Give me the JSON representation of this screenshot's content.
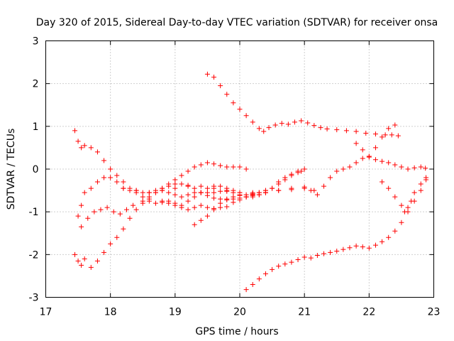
{
  "chart_data": {
    "type": "scatter",
    "title": "Day 320 of 2015, Sidereal Day-to-day VTEC variation (SDTVAR) for receiver onsa",
    "xlabel": "GPS time / hours",
    "ylabel": "SDTVAR / TECUs",
    "xlim": [
      17,
      23
    ],
    "ylim": [
      -3,
      3
    ],
    "xticks": [
      "17",
      "18",
      "19",
      "20",
      "21",
      "22",
      "23"
    ],
    "yticks": [
      "-3",
      "-2",
      "-1",
      "0",
      "1",
      "2",
      "3"
    ],
    "grid": true,
    "marker": "+",
    "color": "#ff0000",
    "series": [
      {
        "points": [
          [
            19.5,
            2.22
          ],
          [
            19.6,
            2.15
          ],
          [
            19.7,
            1.95
          ],
          [
            19.8,
            1.75
          ],
          [
            19.9,
            1.55
          ],
          [
            20.0,
            1.4
          ],
          [
            20.1,
            1.25
          ],
          [
            20.2,
            1.1
          ],
          [
            20.3,
            0.95
          ],
          [
            20.37,
            0.88
          ],
          [
            20.45,
            0.97
          ],
          [
            20.55,
            1.03
          ],
          [
            20.65,
            1.07
          ],
          [
            20.75,
            1.05
          ],
          [
            20.85,
            1.1
          ],
          [
            20.95,
            1.13
          ],
          [
            21.05,
            1.08
          ],
          [
            21.15,
            1.02
          ],
          [
            21.25,
            0.97
          ],
          [
            21.35,
            0.94
          ],
          [
            21.5,
            0.92
          ],
          [
            21.65,
            0.9
          ],
          [
            21.8,
            0.88
          ],
          [
            21.95,
            0.84
          ],
          [
            22.1,
            0.82
          ],
          [
            22.25,
            0.8
          ],
          [
            22.35,
            0.8
          ],
          [
            22.45,
            0.78
          ]
        ]
      },
      {
        "points": [
          [
            20.1,
            -2.82
          ],
          [
            20.2,
            -2.7
          ],
          [
            20.3,
            -2.57
          ],
          [
            20.4,
            -2.45
          ],
          [
            20.5,
            -2.35
          ],
          [
            20.6,
            -2.27
          ],
          [
            20.7,
            -2.22
          ],
          [
            20.8,
            -2.18
          ],
          [
            20.9,
            -2.12
          ],
          [
            21.0,
            -2.06
          ],
          [
            21.1,
            -2.08
          ],
          [
            21.2,
            -2.02
          ],
          [
            21.3,
            -1.98
          ],
          [
            21.4,
            -1.95
          ],
          [
            21.5,
            -1.92
          ],
          [
            21.6,
            -1.88
          ],
          [
            21.7,
            -1.84
          ],
          [
            21.8,
            -1.8
          ],
          [
            21.9,
            -1.82
          ],
          [
            22.0,
            -1.85
          ],
          [
            22.1,
            -1.78
          ],
          [
            22.2,
            -1.7
          ],
          [
            22.3,
            -1.6
          ],
          [
            22.4,
            -1.45
          ],
          [
            22.5,
            -1.25
          ],
          [
            22.6,
            -1.0
          ],
          [
            22.7,
            -0.75
          ],
          [
            22.8,
            -0.5
          ],
          [
            22.88,
            -0.25
          ]
        ]
      },
      {
        "points": [
          [
            22.2,
            -0.3
          ],
          [
            22.3,
            -0.45
          ],
          [
            22.4,
            -0.65
          ],
          [
            22.5,
            -0.85
          ],
          [
            22.55,
            -1.0
          ],
          [
            22.6,
            -0.9
          ],
          [
            22.65,
            -0.75
          ],
          [
            22.7,
            -0.55
          ],
          [
            22.8,
            -0.35
          ],
          [
            22.88,
            -0.2
          ]
        ]
      },
      {
        "points": [
          [
            18.2,
            -0.45
          ],
          [
            18.4,
            -0.5
          ],
          [
            18.6,
            -0.55
          ],
          [
            18.8,
            -0.5
          ],
          [
            19.0,
            -0.45
          ],
          [
            19.2,
            -0.4
          ],
          [
            19.4,
            -0.4
          ],
          [
            19.6,
            -0.45
          ],
          [
            19.8,
            -0.5
          ],
          [
            20.0,
            -0.55
          ],
          [
            20.2,
            -0.58
          ],
          [
            20.4,
            -0.55
          ],
          [
            20.6,
            -0.5
          ],
          [
            20.8,
            -0.48
          ],
          [
            21.0,
            -0.45
          ],
          [
            21.15,
            -0.5
          ],
          [
            21.2,
            -0.6
          ],
          [
            21.3,
            -0.4
          ],
          [
            21.4,
            -0.2
          ],
          [
            21.5,
            -0.05
          ],
          [
            21.6,
            0.0
          ],
          [
            21.7,
            0.05
          ],
          [
            21.8,
            0.15
          ],
          [
            21.9,
            0.25
          ],
          [
            22.0,
            0.28
          ],
          [
            22.1,
            0.22
          ],
          [
            22.2,
            0.18
          ],
          [
            22.3,
            0.15
          ],
          [
            22.4,
            0.1
          ],
          [
            22.5,
            0.05
          ],
          [
            22.6,
            0.0
          ],
          [
            22.7,
            0.03
          ],
          [
            22.8,
            0.05
          ],
          [
            22.87,
            0.02
          ]
        ]
      },
      {
        "points": [
          [
            21.8,
            0.6
          ],
          [
            21.9,
            0.45
          ],
          [
            22.0,
            0.3
          ],
          [
            22.1,
            0.5
          ],
          [
            22.2,
            0.75
          ],
          [
            22.3,
            0.95
          ],
          [
            22.4,
            1.03
          ]
        ]
      },
      {
        "points": [
          [
            17.45,
            -2.0
          ],
          [
            17.5,
            -2.15
          ],
          [
            17.55,
            -2.25
          ],
          [
            17.6,
            -2.1
          ],
          [
            17.7,
            -2.3
          ],
          [
            17.8,
            -2.15
          ],
          [
            17.9,
            -1.95
          ],
          [
            18.0,
            -1.75
          ],
          [
            18.1,
            -1.6
          ],
          [
            18.2,
            -1.4
          ],
          [
            18.3,
            -1.15
          ],
          [
            18.4,
            -0.95
          ],
          [
            18.5,
            -0.8
          ],
          [
            18.6,
            -0.7
          ],
          [
            18.7,
            -0.55
          ],
          [
            18.8,
            -0.45
          ],
          [
            18.9,
            -0.35
          ],
          [
            19.0,
            -0.25
          ],
          [
            19.1,
            -0.15
          ],
          [
            19.2,
            -0.05
          ],
          [
            19.3,
            0.05
          ],
          [
            19.4,
            0.1
          ],
          [
            19.5,
            0.15
          ],
          [
            19.6,
            0.12
          ],
          [
            19.7,
            0.08
          ],
          [
            19.8,
            0.05
          ],
          [
            19.9,
            0.05
          ],
          [
            20.0,
            0.05
          ],
          [
            20.1,
            0.0
          ]
        ]
      },
      {
        "points": [
          [
            17.45,
            0.9
          ],
          [
            17.5,
            0.65
          ],
          [
            17.55,
            0.5
          ],
          [
            17.6,
            0.55
          ],
          [
            17.7,
            0.5
          ],
          [
            17.8,
            0.4
          ],
          [
            17.9,
            0.2
          ],
          [
            18.0,
            0.0
          ],
          [
            18.1,
            -0.15
          ],
          [
            18.2,
            -0.3
          ],
          [
            18.3,
            -0.45
          ],
          [
            18.4,
            -0.55
          ],
          [
            18.5,
            -0.65
          ],
          [
            18.6,
            -0.75
          ],
          [
            18.7,
            -0.8
          ],
          [
            18.8,
            -0.78
          ],
          [
            18.9,
            -0.75
          ],
          [
            19.0,
            -0.8
          ],
          [
            19.1,
            -0.85
          ],
          [
            19.2,
            -0.75
          ],
          [
            19.3,
            -0.65
          ],
          [
            19.4,
            -0.55
          ],
          [
            19.5,
            -0.45
          ],
          [
            19.6,
            -0.4
          ],
          [
            19.7,
            -0.4
          ],
          [
            19.8,
            -0.45
          ],
          [
            19.9,
            -0.5
          ],
          [
            20.0,
            -0.6
          ],
          [
            20.1,
            -0.65
          ],
          [
            20.2,
            -0.65
          ],
          [
            20.3,
            -0.6
          ],
          [
            20.4,
            -0.55
          ],
          [
            20.5,
            -0.45
          ],
          [
            20.6,
            -0.3
          ],
          [
            20.7,
            -0.2
          ],
          [
            20.8,
            -0.12
          ],
          [
            20.9,
            -0.05
          ],
          [
            21.0,
            0.0
          ]
        ]
      },
      {
        "points": [
          [
            17.5,
            -1.1
          ],
          [
            17.55,
            -0.85
          ],
          [
            17.6,
            -0.55
          ],
          [
            17.7,
            -0.45
          ],
          [
            17.8,
            -0.3
          ],
          [
            17.9,
            -0.2
          ],
          [
            18.0,
            -0.2
          ],
          [
            18.1,
            -0.3
          ],
          [
            18.2,
            -0.45
          ],
          [
            18.3,
            -0.5
          ],
          [
            18.4,
            -0.5
          ],
          [
            18.5,
            -0.55
          ],
          [
            18.6,
            -0.55
          ],
          [
            18.7,
            -0.5
          ],
          [
            18.8,
            -0.45
          ],
          [
            18.9,
            -0.4
          ],
          [
            19.0,
            -0.35
          ],
          [
            19.1,
            -0.35
          ],
          [
            19.2,
            -0.38
          ],
          [
            19.3,
            -0.45
          ],
          [
            19.4,
            -0.55
          ],
          [
            19.5,
            -0.62
          ],
          [
            19.6,
            -0.68
          ],
          [
            19.7,
            -0.7
          ],
          [
            19.8,
            -0.72
          ],
          [
            19.9,
            -0.7
          ],
          [
            20.0,
            -0.68
          ],
          [
            20.1,
            -0.65
          ],
          [
            20.2,
            -0.6
          ],
          [
            20.3,
            -0.55
          ],
          [
            20.4,
            -0.5
          ]
        ]
      },
      {
        "points": [
          [
            17.55,
            -1.35
          ],
          [
            17.65,
            -1.15
          ],
          [
            17.75,
            -1.0
          ],
          [
            17.85,
            -0.95
          ],
          [
            17.95,
            -0.9
          ],
          [
            18.05,
            -1.0
          ],
          [
            18.15,
            -1.05
          ],
          [
            18.25,
            -0.95
          ],
          [
            18.35,
            -0.85
          ],
          [
            18.5,
            -0.75
          ],
          [
            18.6,
            -0.65
          ],
          [
            18.7,
            -0.55
          ],
          [
            18.8,
            -0.5
          ],
          [
            18.9,
            -0.55
          ],
          [
            19.0,
            -0.6
          ],
          [
            19.1,
            -0.65
          ],
          [
            19.2,
            -0.6
          ],
          [
            19.3,
            -0.55
          ],
          [
            19.4,
            -0.55
          ],
          [
            19.5,
            -0.55
          ],
          [
            19.6,
            -0.55
          ],
          [
            19.7,
            -0.52
          ],
          [
            19.8,
            -0.52
          ],
          [
            19.9,
            -0.55
          ],
          [
            20.0,
            -0.55
          ],
          [
            20.2,
            -0.55
          ],
          [
            20.4,
            -0.55
          ],
          [
            20.6,
            -0.5
          ],
          [
            20.8,
            -0.45
          ],
          [
            21.0,
            -0.42
          ],
          [
            21.1,
            -0.5
          ]
        ]
      },
      {
        "points": [
          [
            18.8,
            -0.75
          ],
          [
            18.9,
            -0.8
          ],
          [
            19.0,
            -0.85
          ],
          [
            19.1,
            -0.9
          ],
          [
            19.2,
            -0.95
          ],
          [
            19.3,
            -0.9
          ],
          [
            19.4,
            -0.85
          ],
          [
            19.5,
            -0.9
          ],
          [
            19.6,
            -0.92
          ],
          [
            19.7,
            -0.9
          ],
          [
            19.8,
            -0.88
          ],
          [
            19.9,
            -0.78
          ],
          [
            20.0,
            -0.72
          ],
          [
            20.1,
            -0.65
          ],
          [
            20.2,
            -0.62
          ],
          [
            20.3,
            -0.6
          ],
          [
            20.4,
            -0.55
          ]
        ]
      },
      {
        "points": [
          [
            19.3,
            -1.3
          ],
          [
            19.4,
            -1.2
          ],
          [
            19.5,
            -1.1
          ],
          [
            19.6,
            -0.95
          ],
          [
            19.7,
            -0.8
          ],
          [
            19.8,
            -0.7
          ],
          [
            19.9,
            -0.65
          ],
          [
            20.0,
            -0.62
          ],
          [
            20.1,
            -0.6
          ],
          [
            20.2,
            -0.58
          ],
          [
            20.3,
            -0.55
          ],
          [
            20.4,
            -0.5
          ],
          [
            20.5,
            -0.45
          ],
          [
            20.6,
            -0.35
          ],
          [
            20.7,
            -0.25
          ],
          [
            20.8,
            -0.15
          ],
          [
            20.9,
            -0.08
          ],
          [
            20.95,
            -0.05
          ]
        ]
      }
    ]
  }
}
